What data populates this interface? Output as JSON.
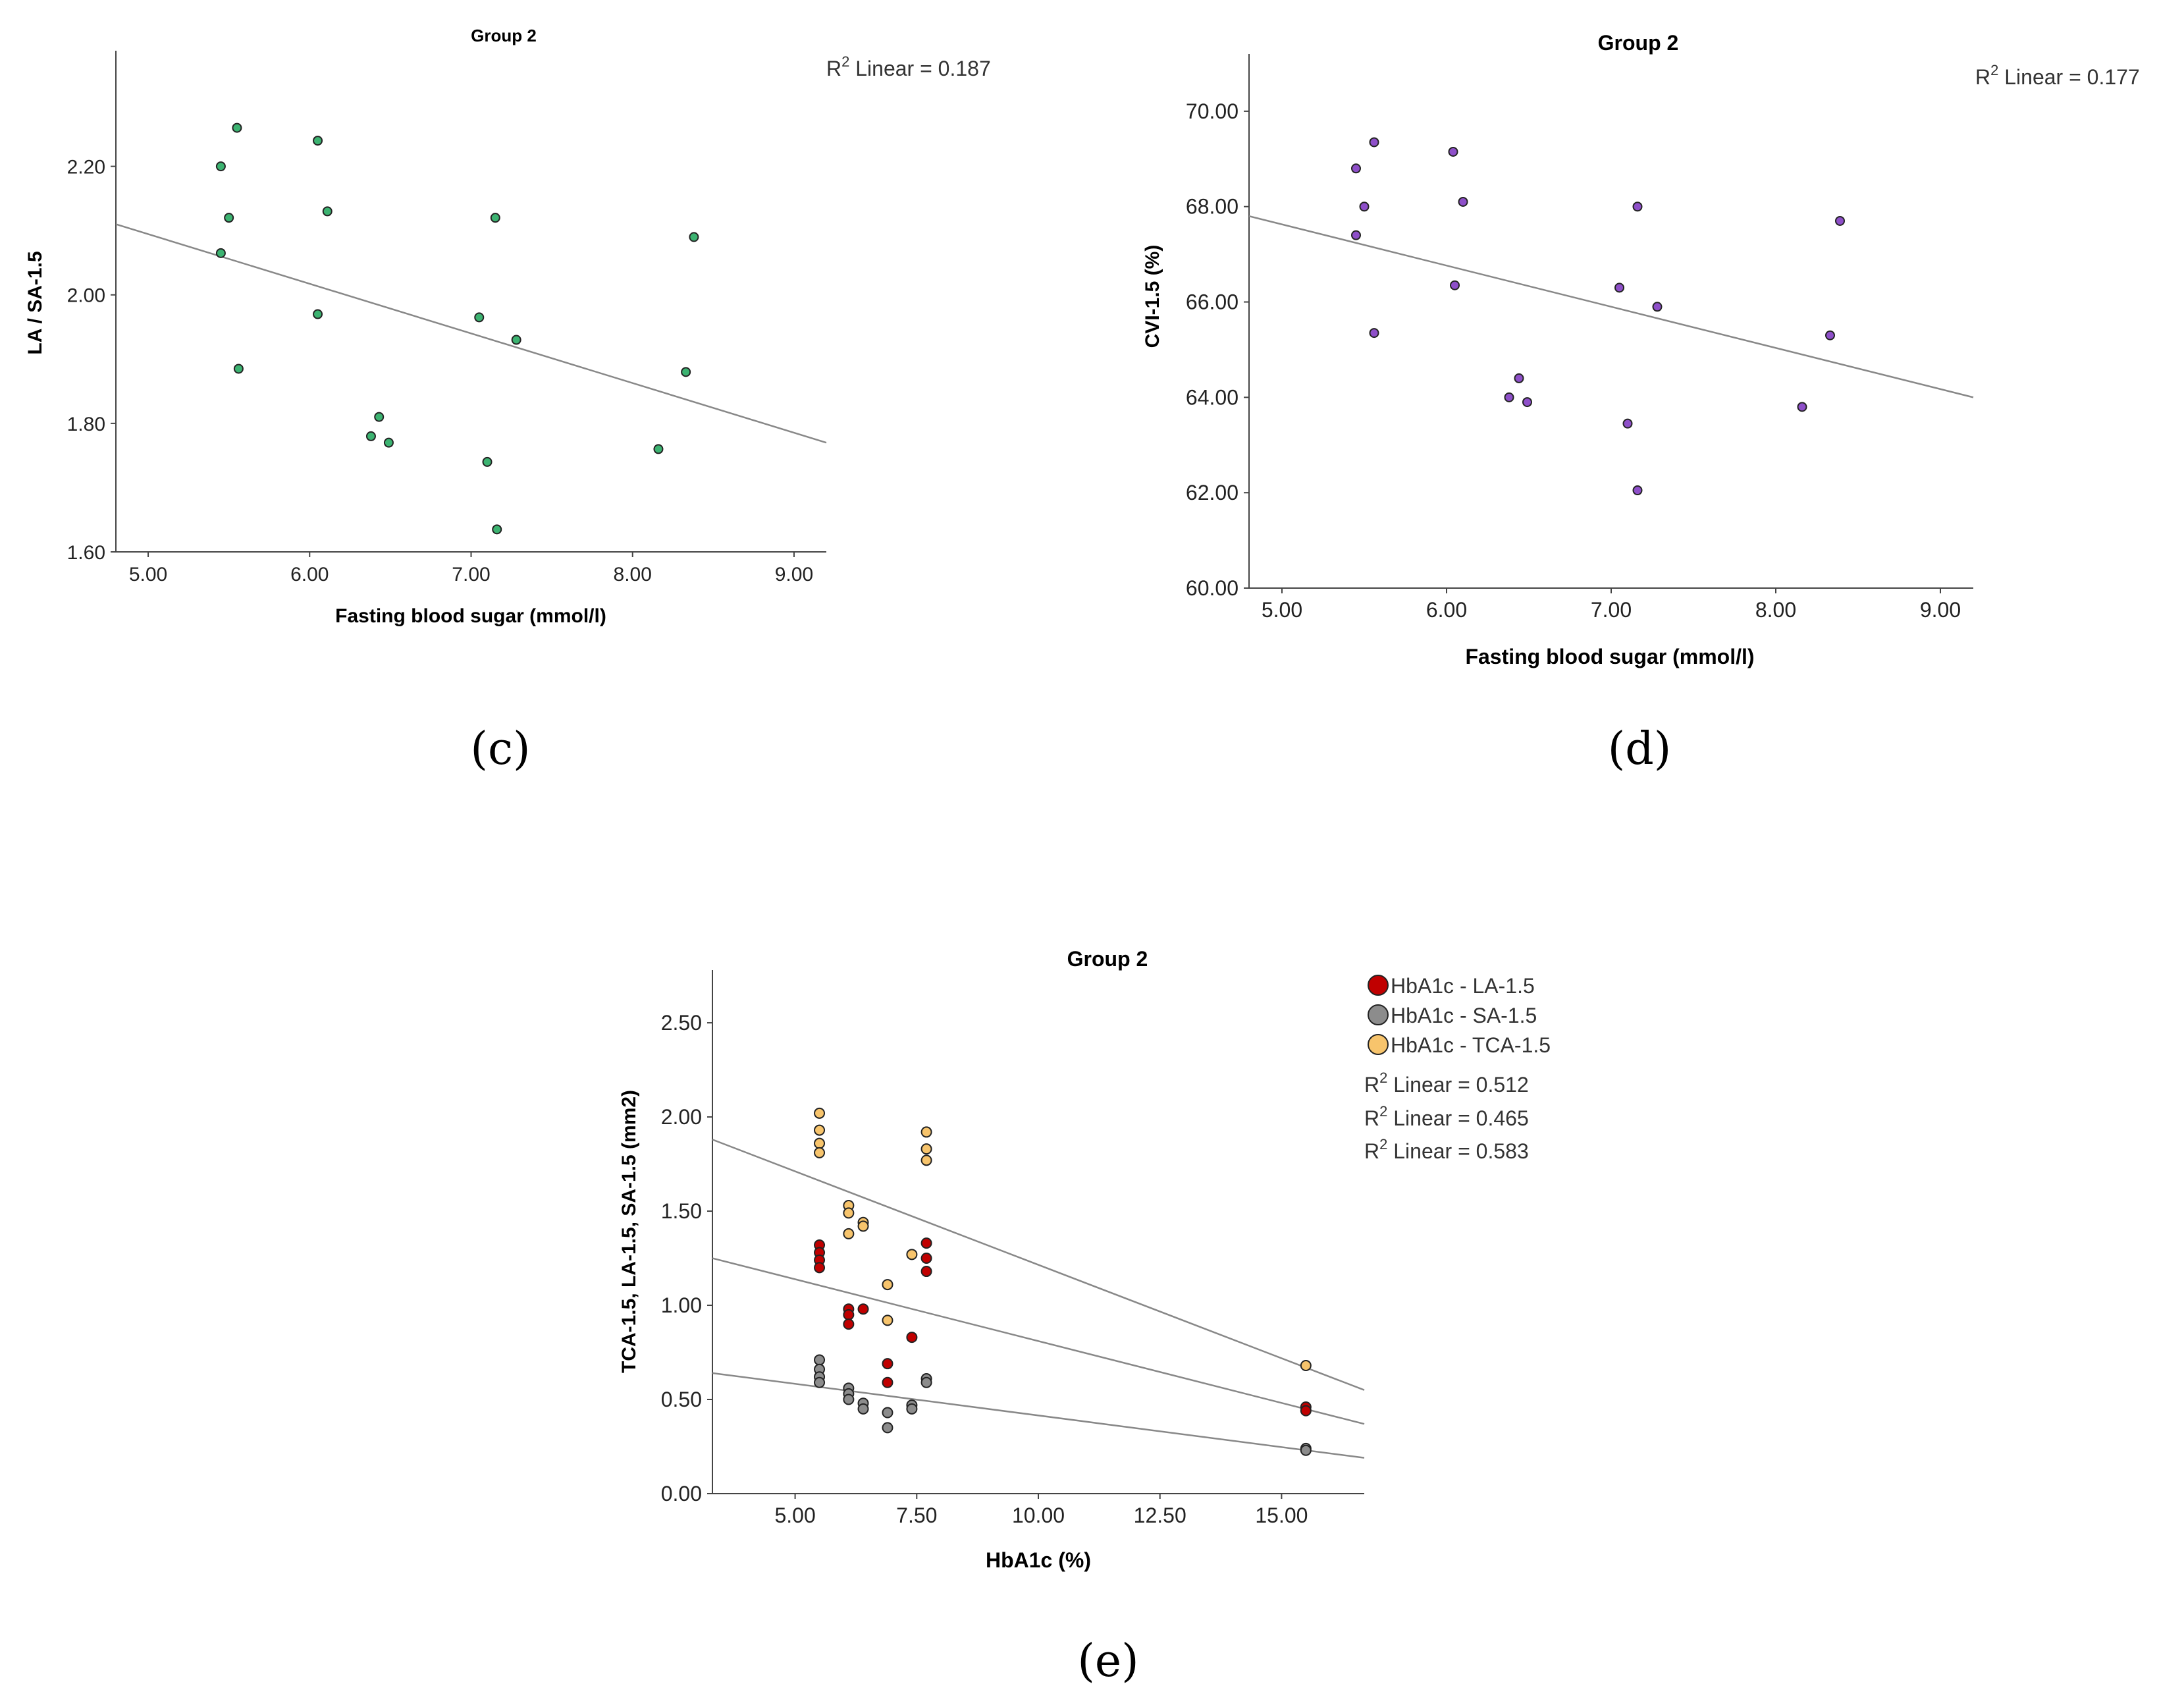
{
  "chart_data": [
    {
      "type": "scatter",
      "title": "Group 2",
      "xlabel": "Fasting blood sugar (mmol/l)",
      "ylabel": "LA / SA-1.5",
      "xlim": [
        4.8,
        9.2
      ],
      "ylim": [
        1.6,
        2.38
      ],
      "xticks": [
        "5.00",
        "6.00",
        "7.00",
        "8.00",
        "9.00"
      ],
      "yticks": [
        "1.60",
        "1.80",
        "2.00",
        "2.20"
      ],
      "xtick_values": [
        5,
        6,
        7,
        8,
        9
      ],
      "ytick_values": [
        1.6,
        1.8,
        2.0,
        2.2
      ],
      "r2_prefix": "R",
      "r2_sup": "2",
      "r2_text": " Linear = 0.187",
      "marker_color": "#3cb371",
      "fit_line": {
        "x": [
          4.8,
          9.2
        ],
        "y": [
          2.11,
          1.77
        ]
      },
      "series": [
        {
          "x": [
            5.45,
            5.5,
            5.45,
            5.55,
            5.56,
            6.05,
            6.05,
            6.11,
            6.38,
            6.43,
            6.49,
            7.05,
            7.1,
            7.15,
            7.16,
            7.28,
            8.16,
            8.33,
            8.38
          ],
          "y": [
            2.2,
            2.12,
            2.065,
            2.26,
            1.885,
            2.24,
            1.97,
            2.13,
            1.78,
            1.81,
            1.77,
            1.965,
            1.74,
            2.12,
            1.635,
            1.93,
            1.76,
            1.88,
            2.09
          ]
        }
      ],
      "panel_label": "(c)"
    },
    {
      "type": "scatter",
      "title": "Group 2",
      "xlabel": "Fasting blood sugar (mmol/l)",
      "ylabel": "CVI-1.5 (%)",
      "xlim": [
        4.8,
        9.2
      ],
      "ylim": [
        60,
        71.2
      ],
      "xticks": [
        "5.00",
        "6.00",
        "7.00",
        "8.00",
        "9.00"
      ],
      "yticks": [
        "60.00",
        "62.00",
        "64.00",
        "66.00",
        "68.00",
        "70.00"
      ],
      "xtick_values": [
        5,
        6,
        7,
        8,
        9
      ],
      "ytick_values": [
        60,
        62,
        64,
        66,
        68,
        70
      ],
      "r2_prefix": "R",
      "r2_sup": "2",
      "r2_text": " Linear = 0.177",
      "marker_color": "#8e4fc9",
      "fit_line": {
        "x": [
          4.8,
          9.2
        ],
        "y": [
          67.8,
          64.0
        ]
      },
      "series": [
        {
          "x": [
            5.45,
            5.5,
            5.45,
            5.56,
            5.56,
            6.04,
            6.05,
            6.1,
            6.38,
            6.44,
            6.49,
            7.05,
            7.1,
            7.16,
            7.16,
            7.28,
            8.16,
            8.33,
            8.39
          ],
          "y": [
            68.8,
            68.0,
            67.4,
            69.35,
            65.35,
            69.15,
            66.35,
            68.1,
            64.0,
            64.4,
            63.9,
            66.3,
            63.45,
            68.0,
            62.05,
            65.9,
            63.8,
            65.3,
            67.7
          ]
        }
      ],
      "panel_label": "(d)"
    },
    {
      "type": "scatter",
      "title": "Group 2",
      "xlabel": "HbA1c (%)",
      "ylabel": "TCA-1.5, LA-1.5, SA-1.5 (mm2)",
      "xlim": [
        3.3,
        16.7
      ],
      "ylim": [
        0,
        2.78
      ],
      "xticks": [
        "5.00",
        "7.50",
        "10.00",
        "12.50",
        "15.00"
      ],
      "yticks": [
        "0.00",
        "0.50",
        "1.00",
        "1.50",
        "2.00",
        "2.50"
      ],
      "xtick_values": [
        5,
        7.5,
        10,
        12.5,
        15
      ],
      "ytick_values": [
        0,
        0.5,
        1.0,
        1.5,
        2.0,
        2.5
      ],
      "legend_position": "top-right",
      "legend": [
        {
          "label": "HbA1c - LA-1.5",
          "color": "#c00000"
        },
        {
          "label": "HbA1c - SA-1.5",
          "color": "#8c8c8c"
        },
        {
          "label": "HbA1c - TCA-1.5",
          "color": "#f7c46c"
        }
      ],
      "r2_prefix": "R",
      "r2_sup": "2",
      "r2_lines": [
        " Linear = 0.512",
        " Linear = 0.465",
        " Linear = 0.583"
      ],
      "fit_lines": [
        {
          "x": [
            3.3,
            16.7
          ],
          "y": [
            1.88,
            0.55
          ]
        },
        {
          "x": [
            3.3,
            16.7
          ],
          "y": [
            1.25,
            0.37
          ]
        },
        {
          "x": [
            3.3,
            16.7
          ],
          "y": [
            0.64,
            0.19
          ]
        }
      ],
      "series": [
        {
          "name": "HbA1c - LA-1.5",
          "color": "#c00000",
          "x": [
            5.5,
            5.5,
            5.5,
            5.5,
            6.1,
            6.1,
            6.1,
            6.4,
            6.9,
            6.9,
            7.4,
            7.7,
            7.7,
            7.7,
            15.5,
            15.5
          ],
          "y": [
            1.32,
            1.28,
            1.24,
            1.2,
            0.98,
            0.95,
            0.9,
            0.98,
            0.69,
            0.59,
            0.83,
            1.33,
            1.25,
            1.18,
            0.46,
            0.44
          ]
        },
        {
          "name": "HbA1c - SA-1.5",
          "color": "#8c8c8c",
          "x": [
            5.5,
            5.5,
            5.5,
            5.5,
            6.1,
            6.1,
            6.1,
            6.4,
            6.4,
            6.9,
            6.9,
            7.4,
            7.4,
            7.7,
            7.7,
            15.5,
            15.5
          ],
          "y": [
            0.71,
            0.66,
            0.62,
            0.59,
            0.56,
            0.53,
            0.5,
            0.48,
            0.45,
            0.43,
            0.35,
            0.47,
            0.45,
            0.61,
            0.59,
            0.24,
            0.23
          ]
        },
        {
          "name": "HbA1c - TCA-1.5",
          "color": "#f7c46c",
          "x": [
            5.5,
            5.5,
            5.5,
            5.5,
            6.1,
            6.1,
            6.1,
            6.4,
            6.4,
            6.9,
            6.9,
            7.4,
            7.7,
            7.7,
            7.7,
            15.5
          ],
          "y": [
            2.02,
            1.93,
            1.86,
            1.81,
            1.53,
            1.49,
            1.38,
            1.44,
            1.42,
            1.11,
            0.92,
            1.27,
            1.92,
            1.83,
            1.77,
            0.68
          ]
        }
      ],
      "panel_label": "(e)"
    }
  ]
}
